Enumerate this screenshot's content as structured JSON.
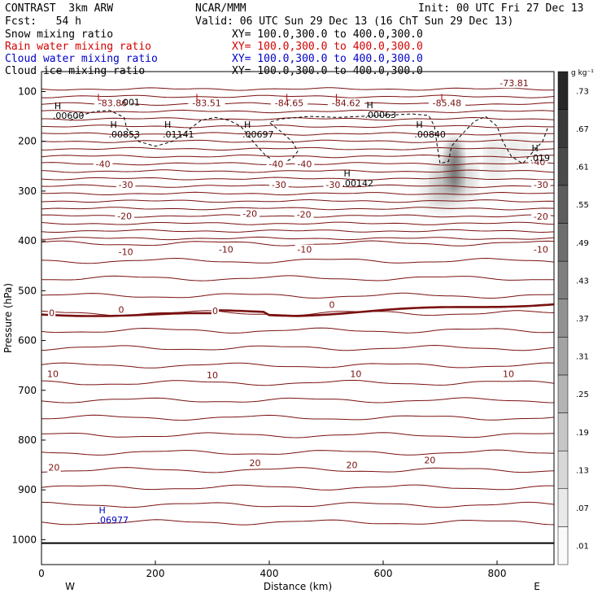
{
  "header": {
    "model": "CONTRAST  3km ARW",
    "center": "NCAR/MMM",
    "init": "Init: 00 UTC Fri 27 Dec 13",
    "fcst": "Fcst:   54 h",
    "valid": "Valid: 06 UTC Sun 29 Dec 13 (16 ChT Sun 29 Dec 13)",
    "fields": [
      {
        "name": "Snow mixing ratio",
        "xy": "XY= 100.0,300.0 to 400.0,300.0",
        "color": "#000000"
      },
      {
        "name": "Rain water mixing ratio",
        "xy": "XY= 100.0,300.0 to 400.0,300.0",
        "color": "#d40000"
      },
      {
        "name": "Cloud water mixing ratio",
        "xy": "XY= 100.0,300.0 to 400.0,300.0",
        "color": "#0000c8"
      },
      {
        "name": "Cloud ice mixing ratio",
        "xy": "XY= 100.0,300.0 to 400.0,300.0",
        "color": "#000000"
      }
    ]
  },
  "chart_data": {
    "type": "cross-section",
    "xlabel": "Distance (km)",
    "ylabel": "Pressure (hPa)",
    "xlim": [
      0,
      900
    ],
    "ylim": [
      1050,
      60
    ],
    "xticks": [
      0,
      200,
      400,
      600,
      800
    ],
    "yticks": [
      100,
      200,
      300,
      400,
      500,
      600,
      700,
      800,
      900,
      1000
    ],
    "x_end_labels": {
      "left": "W",
      "right": "E"
    },
    "colorbar": {
      "units": "g kg⁻¹",
      "ticks": [
        ".01",
        ".07",
        ".13",
        ".19",
        ".25",
        ".31",
        ".37",
        ".43",
        ".49",
        ".55",
        ".61",
        ".67",
        ".73"
      ]
    },
    "temperature_labels": [
      {
        "text": "-83.86",
        "x": 125,
        "p": 128
      },
      {
        "text": "-83.51",
        "x": 290,
        "p": 128
      },
      {
        "text": "-84.65",
        "x": 435,
        "p": 128
      },
      {
        "text": "-84.62",
        "x": 535,
        "p": 128
      },
      {
        "text": "-85.48",
        "x": 712,
        "p": 128
      },
      {
        "text": "-73.81",
        "x": 830,
        "p": 88
      },
      {
        "text": "-40",
        "x": 108,
        "p": 250
      },
      {
        "text": "-40",
        "x": 412,
        "p": 250
      },
      {
        "text": "-40",
        "x": 462,
        "p": 250
      },
      {
        "text": "-40",
        "x": 872,
        "p": 246
      },
      {
        "text": "-30",
        "x": 148,
        "p": 292
      },
      {
        "text": "-30",
        "x": 417,
        "p": 292
      },
      {
        "text": "-30",
        "x": 512,
        "p": 292
      },
      {
        "text": "-30",
        "x": 877,
        "p": 292
      },
      {
        "text": "-20",
        "x": 146,
        "p": 355
      },
      {
        "text": "-20",
        "x": 366,
        "p": 350
      },
      {
        "text": "-20",
        "x": 461,
        "p": 352
      },
      {
        "text": "-20",
        "x": 877,
        "p": 356
      },
      {
        "text": "-10",
        "x": 148,
        "p": 427
      },
      {
        "text": "-10",
        "x": 324,
        "p": 422
      },
      {
        "text": "-10",
        "x": 462,
        "p": 422
      },
      {
        "text": "-10",
        "x": 877,
        "p": 422
      },
      {
        "text": "0",
        "x": 18,
        "p": 549
      },
      {
        "text": "0",
        "x": 140,
        "p": 543
      },
      {
        "text": "0",
        "x": 305,
        "p": 545
      },
      {
        "text": "0",
        "x": 510,
        "p": 533
      },
      {
        "text": "10",
        "x": 20,
        "p": 672
      },
      {
        "text": "10",
        "x": 300,
        "p": 674
      },
      {
        "text": "10",
        "x": 552,
        "p": 672
      },
      {
        "text": "10",
        "x": 820,
        "p": 672
      },
      {
        "text": "20",
        "x": 22,
        "p": 860
      },
      {
        "text": "20",
        "x": 375,
        "p": 851
      },
      {
        "text": "20",
        "x": 545,
        "p": 855
      },
      {
        "text": "20",
        "x": 682,
        "p": 845
      }
    ],
    "lows": [
      {
        "label": "L",
        "x": 102,
        "p": 118
      },
      {
        "label": "L",
        "x": 275,
        "p": 118
      },
      {
        "label": "L",
        "x": 433,
        "p": 118
      },
      {
        "label": "L",
        "x": 520,
        "p": 118
      },
      {
        "label": "L",
        "x": 705,
        "p": 118
      }
    ],
    "highs": [
      {
        "label": "H",
        "value": ".00600",
        "x": 37,
        "p": 155,
        "color": "#000000"
      },
      {
        "label": "H",
        "value": ".00853",
        "x": 135,
        "p": 192,
        "color": "#000000"
      },
      {
        "label": "H",
        "value": ".01141",
        "x": 230,
        "p": 192,
        "color": "#000000"
      },
      {
        "label": "H",
        "value": ".00697",
        "x": 370,
        "p": 192,
        "color": "#000000"
      },
      {
        "label": "H",
        "value": ".00063",
        "x": 585,
        "p": 153,
        "color": "#000000"
      },
      {
        "label": "H",
        "value": ".00840",
        "x": 672,
        "p": 192,
        "color": "#000000"
      },
      {
        "label": "H",
        "value": ".00142",
        "x": 545,
        "p": 290,
        "color": "#000000"
      },
      {
        "label": "H",
        "value": ".019",
        "x": 875,
        "p": 240,
        "color": "#000000"
      },
      {
        "label": "H",
        "value": ".06977",
        "x": 115,
        "p": 967,
        "color": "#0000c8"
      },
      {
        "label": "",
        "value": ".001",
        "x": 155,
        "p": 128,
        "color": "#000000"
      }
    ],
    "freezing_level_p": 548,
    "surface_p": 1007
  }
}
